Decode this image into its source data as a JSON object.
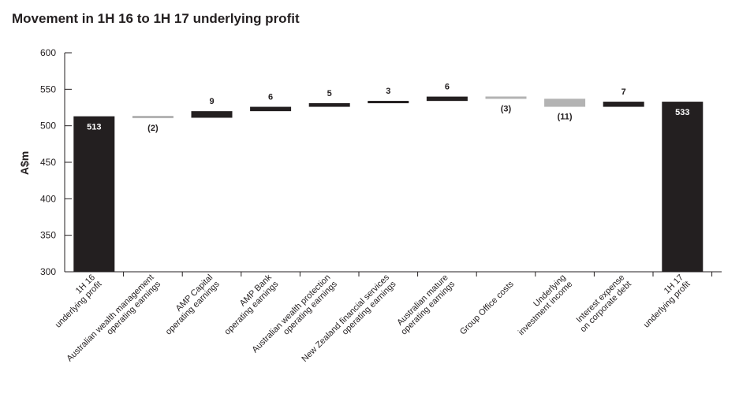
{
  "chart_data": {
    "type": "bar",
    "title": "Movement in 1H 16 to 1H 17 underlying profit",
    "ylabel": "A$m",
    "xlabel": "",
    "ylim": [
      300,
      600
    ],
    "yticks": [
      300,
      350,
      400,
      450,
      500,
      550,
      600
    ],
    "categories": [
      [
        "1H 16",
        "underlying profit"
      ],
      [
        "Australian wealth management",
        "operating earnings"
      ],
      [
        "AMP Capital",
        "operating earnings"
      ],
      [
        "AMP Bank",
        "operating earnings"
      ],
      [
        "Australian wealth protection",
        "operating earnings"
      ],
      [
        "New Zealand financial services",
        "operating earnings"
      ],
      [
        "Australian mature",
        "operating earnings"
      ],
      [
        "Group Office costs"
      ],
      [
        "Underlying",
        "investment income"
      ],
      [
        "Interest expense",
        "on corporate debt"
      ],
      [
        "1H 17",
        "underlying profit"
      ]
    ],
    "bars": [
      {
        "kind": "total",
        "start": 300,
        "end": 513,
        "label": "513"
      },
      {
        "kind": "decrease",
        "start": 513,
        "end": 511,
        "label": "(2)"
      },
      {
        "kind": "increase",
        "start": 511,
        "end": 520,
        "label": "9"
      },
      {
        "kind": "increase",
        "start": 520,
        "end": 526,
        "label": "6"
      },
      {
        "kind": "increase",
        "start": 526,
        "end": 531,
        "label": "5"
      },
      {
        "kind": "increase",
        "start": 531,
        "end": 534,
        "label": "3"
      },
      {
        "kind": "increase",
        "start": 534,
        "end": 540,
        "label": "6"
      },
      {
        "kind": "decrease",
        "start": 540,
        "end": 537,
        "label": "(3)"
      },
      {
        "kind": "decrease",
        "start": 537,
        "end": 526,
        "label": "(11)"
      },
      {
        "kind": "increase",
        "start": 526,
        "end": 533,
        "label": "7"
      },
      {
        "kind": "total",
        "start": 300,
        "end": 533,
        "label": "533"
      }
    ],
    "colors": {
      "total": "#231f20",
      "increase": "#231f20",
      "decrease": "#b3b3b3",
      "axis": "#231f20",
      "text": "#231f20",
      "total_label": "#ffffff"
    },
    "grid": false,
    "legend": "none"
  }
}
